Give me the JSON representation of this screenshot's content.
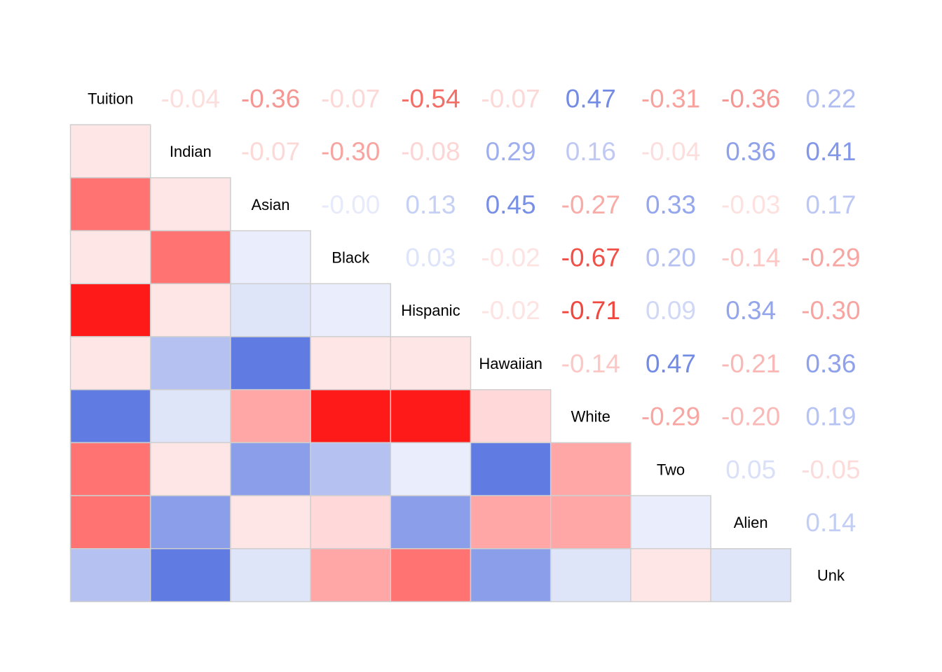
{
  "chart_data": {
    "type": "heatmap",
    "subtype": "correlation-matrix-mixed",
    "title": "",
    "xlabel": "",
    "ylabel": "",
    "lower_triangle": "colored-squares",
    "upper_triangle": "coefficient-numbers",
    "diagonal": "variable-names",
    "legend": "none",
    "grid": false,
    "color_scale": {
      "range": [
        -1,
        1
      ],
      "negative_color": "#ff0000",
      "neutral_color": "#ffffff",
      "positive_color": "#2b4fd8"
    },
    "variables": [
      "Tuition",
      "Indian",
      "Asian",
      "Black",
      "Hispanic",
      "Hawaiian",
      "White",
      "Two",
      "Alien",
      "Unk"
    ],
    "matrix": [
      [
        1.0,
        -0.04,
        -0.36,
        -0.07,
        -0.54,
        -0.07,
        0.47,
        -0.31,
        -0.36,
        0.22
      ],
      [
        -0.04,
        1.0,
        -0.07,
        -0.3,
        -0.08,
        0.29,
        0.16,
        -0.04,
        0.36,
        0.41
      ],
      [
        -0.36,
        -0.07,
        1.0,
        -0.0,
        0.13,
        0.45,
        -0.27,
        0.33,
        -0.03,
        0.17
      ],
      [
        -0.07,
        -0.3,
        -0.0,
        1.0,
        0.03,
        -0.02,
        -0.67,
        0.2,
        -0.14,
        -0.29
      ],
      [
        -0.54,
        -0.08,
        0.13,
        0.03,
        1.0,
        -0.02,
        -0.71,
        0.09,
        0.34,
        -0.3
      ],
      [
        -0.07,
        0.29,
        0.45,
        -0.02,
        -0.02,
        1.0,
        -0.14,
        0.47,
        -0.21,
        0.36
      ],
      [
        0.47,
        0.16,
        -0.27,
        -0.67,
        -0.71,
        -0.14,
        1.0,
        -0.29,
        -0.2,
        0.19
      ],
      [
        -0.31,
        -0.04,
        0.33,
        0.2,
        0.09,
        0.47,
        -0.29,
        1.0,
        0.05,
        -0.05
      ],
      [
        -0.36,
        0.36,
        -0.03,
        -0.14,
        0.34,
        -0.21,
        -0.2,
        0.05,
        1.0,
        0.14
      ],
      [
        0.22,
        0.41,
        0.17,
        -0.29,
        -0.3,
        0.36,
        0.19,
        -0.05,
        0.14,
        1.0
      ]
    ],
    "coefficient_labels": [
      [
        "",
        "-0.04",
        "-0.36",
        "-0.07",
        "-0.54",
        "-0.07",
        "0.47",
        "-0.31",
        "-0.36",
        "0.22"
      ],
      [
        "",
        "",
        "-0.07",
        "-0.30",
        "-0.08",
        "0.29",
        "0.16",
        "-0.04",
        "0.36",
        "0.41"
      ],
      [
        "",
        "",
        "",
        "-0.00",
        "0.13",
        "0.45",
        "-0.27",
        "0.33",
        "-0.03",
        "0.17"
      ],
      [
        "",
        "",
        "",
        "",
        "0.03",
        "-0.02",
        "-0.67",
        "0.20",
        "-0.14",
        "-0.29"
      ],
      [
        "",
        "",
        "",
        "",
        "",
        "-0.02",
        "-0.71",
        "0.09",
        "0.34",
        "-0.30"
      ],
      [
        "",
        "",
        "",
        "",
        "",
        "",
        "-0.14",
        "0.47",
        "-0.21",
        "0.36"
      ],
      [
        "",
        "",
        "",
        "",
        "",
        "",
        "",
        "-0.29",
        "-0.20",
        "0.19"
      ],
      [
        "",
        "",
        "",
        "",
        "",
        "",
        "",
        "",
        "0.05",
        "-0.05"
      ],
      [
        "",
        "",
        "",
        "",
        "",
        "",
        "",
        "",
        "",
        "0.14"
      ],
      [
        "",
        "",
        "",
        "",
        "",
        "",
        "",
        "",
        "",
        ""
      ]
    ]
  }
}
